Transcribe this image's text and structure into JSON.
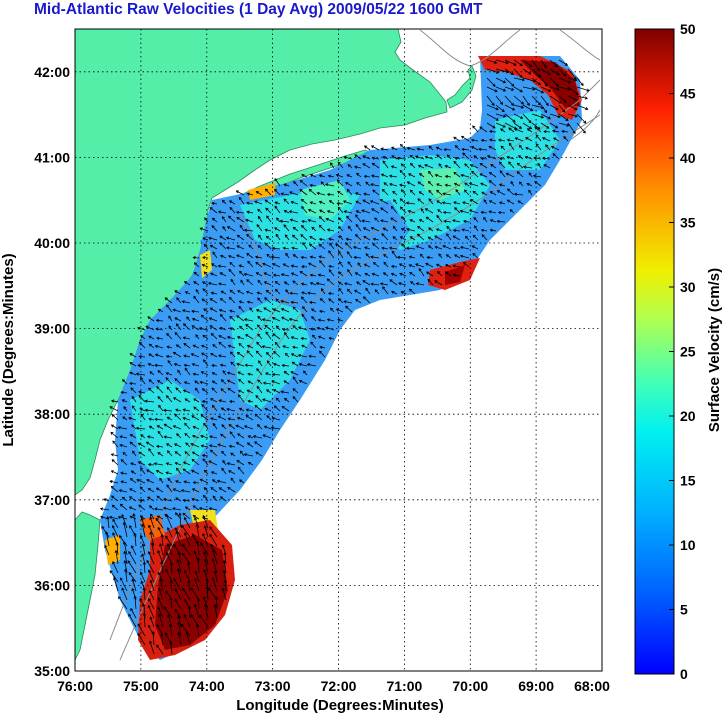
{
  "title": "Mid-Atlantic Raw Velocities (1 Day Avg) 2009/05/22 1600 GMT",
  "x_axis": {
    "label": "Longitude (Degrees:Minutes)",
    "ticks": [
      "76:00",
      "75:00",
      "74:00",
      "73:00",
      "72:00",
      "71:00",
      "70:00",
      "69:00",
      "68:00"
    ],
    "range": [
      -76,
      -68
    ]
  },
  "y_axis": {
    "label": "Latitude (Degrees:Minutes)",
    "ticks": [
      "35:00",
      "36:00",
      "37:00",
      "38:00",
      "39:00",
      "40:00",
      "41:00",
      "42:00"
    ],
    "range": [
      35,
      42.5
    ]
  },
  "colorbar": {
    "label": "Surface Velocity (cm/s)",
    "ticks": [
      "0",
      "5",
      "10",
      "15",
      "20",
      "25",
      "30",
      "35",
      "40",
      "45",
      "50"
    ],
    "range": [
      0,
      50
    ],
    "colormap": "jet"
  },
  "colors": {
    "land": "#55eea8",
    "ocean_no_data": "#ffffff",
    "title": "#1a1acc",
    "bathymetry": "#8c8c8c",
    "vectors": "#000000"
  }
}
